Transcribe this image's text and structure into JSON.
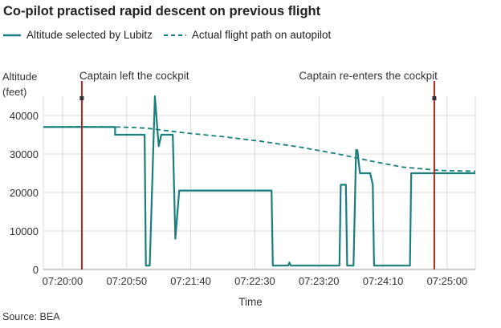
{
  "title": "Co-pilot practised rapid descent on previous flight",
  "source": "Source: BEA",
  "colors": {
    "selected": "#1a7f7c",
    "actual": "#1a7f7c",
    "captain_line": "#b22222",
    "grid": "#d9d9d9",
    "axis": "#999999"
  },
  "chart_data": {
    "type": "line",
    "title": "Co-pilot practised rapid descent on previous flight",
    "xlabel": "Time",
    "ylabel": "Altitude (feet)",
    "ylabel_lines": [
      "Altitude",
      "(feet)"
    ],
    "x_range_seconds": [
      0,
      337
    ],
    "x_ticks": [
      {
        "t": 15,
        "label": "07:20:00"
      },
      {
        "t": 65,
        "label": "07:20:50"
      },
      {
        "t": 115,
        "label": "07:21:40"
      },
      {
        "t": 165,
        "label": "07:22:30"
      },
      {
        "t": 215,
        "label": "07:23:20"
      },
      {
        "t": 265,
        "label": "07:24:10"
      },
      {
        "t": 315,
        "label": "07:25:00"
      }
    ],
    "ylim": [
      0,
      45000
    ],
    "y_ticks": [
      0,
      10000,
      20000,
      30000,
      40000
    ],
    "grid": true,
    "legend_position": "top-left",
    "series": [
      {
        "name": "Altitude selected by Lubitz",
        "style": "solid",
        "points": [
          [
            0,
            37000
          ],
          [
            56,
            37000
          ],
          [
            56,
            35000
          ],
          [
            79,
            35000
          ],
          [
            80,
            1000
          ],
          [
            83,
            1000
          ],
          [
            87,
            45000
          ],
          [
            90,
            32000
          ],
          [
            92,
            35000
          ],
          [
            101,
            35000
          ],
          [
            103,
            8000
          ],
          [
            106,
            20500
          ],
          [
            178,
            20500
          ],
          [
            179,
            1000
          ],
          [
            191,
            1000
          ],
          [
            192,
            1800
          ],
          [
            193,
            1000
          ],
          [
            231,
            1000
          ],
          [
            232,
            22000
          ],
          [
            236,
            22000
          ],
          [
            237,
            1000
          ],
          [
            242,
            1000
          ],
          [
            244,
            31000
          ],
          [
            245,
            31000
          ],
          [
            247,
            25000
          ],
          [
            255,
            25000
          ],
          [
            257,
            22000
          ],
          [
            258,
            1000
          ],
          [
            286,
            1000
          ],
          [
            287,
            25000
          ],
          [
            337,
            25000
          ]
        ]
      },
      {
        "name": "Actual flight path on autopilot",
        "style": "dashed",
        "points": [
          [
            0,
            37000
          ],
          [
            30,
            37100
          ],
          [
            60,
            37000
          ],
          [
            80,
            36700
          ],
          [
            110,
            35500
          ],
          [
            140,
            34500
          ],
          [
            170,
            33300
          ],
          [
            200,
            31800
          ],
          [
            230,
            30000
          ],
          [
            255,
            28200
          ],
          [
            280,
            26600
          ],
          [
            310,
            25700
          ],
          [
            337,
            25500
          ]
        ]
      }
    ],
    "annotations": [
      {
        "t": 30,
        "label": "Captain left the cockpit"
      },
      {
        "t": 305,
        "label": "Captain re-enters the cockpit"
      }
    ]
  }
}
